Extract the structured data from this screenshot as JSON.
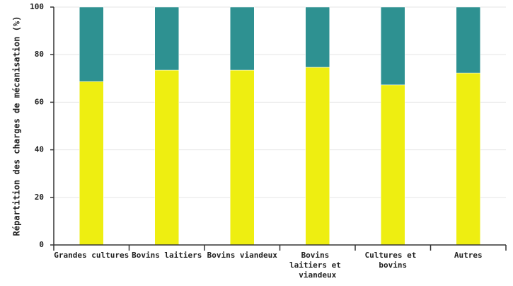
{
  "chart_data": {
    "type": "stacked_bar",
    "y_label": "Répartition des charges de mécanisation (%)",
    "categories": [
      "Grandes cultures",
      "Bovins laitiers",
      "Bovins viandeux",
      "Bovins laitiers et viandeux",
      "Cultures et bovins",
      "Autres"
    ],
    "series": [
      {
        "color": "#eeee11",
        "values": [
          68.7,
          73.5,
          73.5,
          74.7,
          67.3,
          72.3
        ]
      },
      {
        "color": "#2e9191",
        "values": [
          31.3,
          26.5,
          26.5,
          25.3,
          32.7,
          27.7
        ]
      }
    ],
    "ylim": [
      0,
      100
    ],
    "yticks": [
      0,
      20,
      40,
      60,
      80,
      100
    ],
    "grid": true
  }
}
